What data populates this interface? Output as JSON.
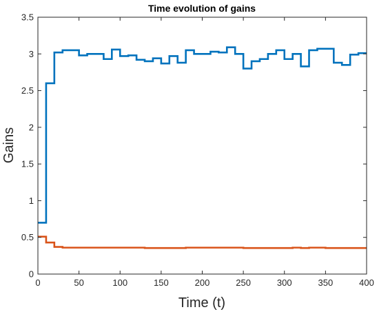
{
  "chart_data": {
    "type": "line",
    "title": "Time evolution of gains",
    "xlabel": "Time (t)",
    "ylabel": "Gains",
    "xlim": [
      0,
      400
    ],
    "ylim": [
      0,
      3.5
    ],
    "xticks": [
      0,
      50,
      100,
      150,
      200,
      250,
      300,
      350,
      400
    ],
    "yticks": [
      0,
      0.5,
      1,
      1.5,
      2,
      2.5,
      3,
      3.5
    ],
    "xtick_labels": [
      "0",
      "50",
      "100",
      "150",
      "200",
      "250",
      "300",
      "350",
      "400"
    ],
    "ytick_labels": [
      "0",
      "0.5",
      "1",
      "1.5",
      "2",
      "2.5",
      "3",
      "3.5"
    ],
    "grid": false,
    "step_interval": 10,
    "series": [
      {
        "color": "#0072BD",
        "values": [
          0.7,
          2.6,
          3.02,
          3.05,
          3.05,
          2.98,
          3.0,
          3.0,
          2.93,
          3.06,
          2.97,
          2.98,
          2.92,
          2.9,
          2.94,
          2.87,
          2.97,
          2.88,
          3.05,
          3.0,
          3.0,
          3.03,
          3.02,
          3.09,
          3.0,
          2.8,
          2.9,
          2.93,
          3.0,
          3.05,
          2.93,
          3.0,
          2.83,
          3.05,
          3.07,
          3.07,
          2.88,
          2.85,
          2.99,
          3.01
        ]
      },
      {
        "color": "#D95319",
        "values": [
          0.51,
          0.43,
          0.37,
          0.36,
          0.36,
          0.36,
          0.36,
          0.36,
          0.36,
          0.36,
          0.36,
          0.36,
          0.36,
          0.355,
          0.355,
          0.355,
          0.355,
          0.355,
          0.36,
          0.36,
          0.36,
          0.36,
          0.36,
          0.36,
          0.36,
          0.355,
          0.355,
          0.355,
          0.355,
          0.355,
          0.355,
          0.36,
          0.355,
          0.36,
          0.36,
          0.355,
          0.355,
          0.355,
          0.355,
          0.355
        ]
      }
    ]
  }
}
